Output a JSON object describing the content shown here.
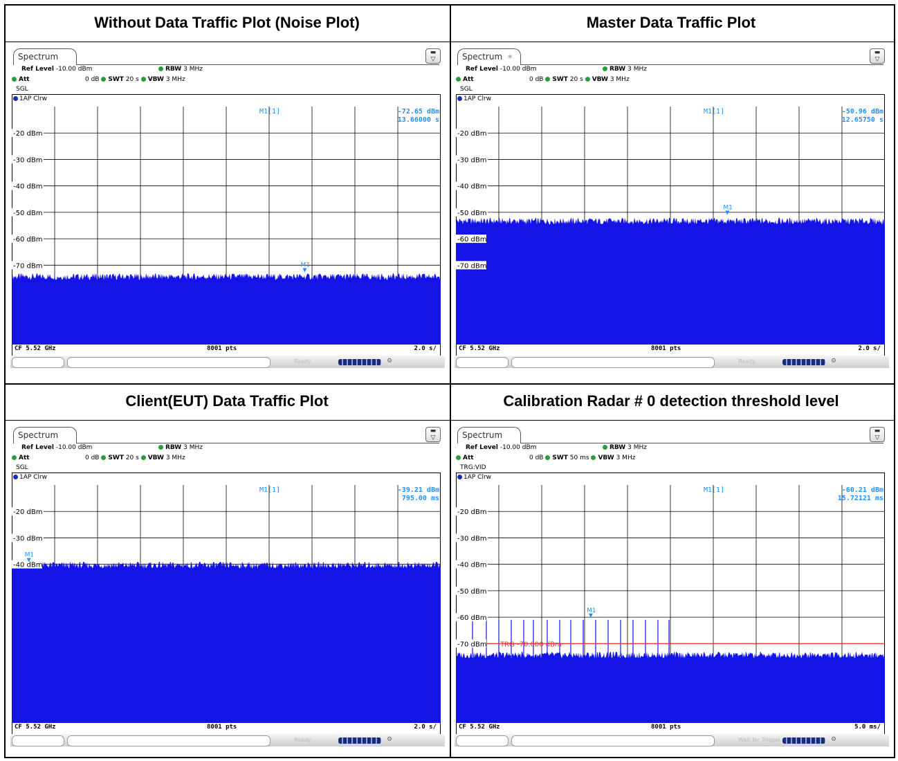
{
  "titles": {
    "tl": "Without Data Traffic Plot (Noise Plot)",
    "tr": "Master Data Traffic Plot",
    "bl": "Client(EUT) Data Traffic Plot",
    "br": "Calibration Radar # 0 detection threshold level"
  },
  "common": {
    "tab_label": "Spectrum",
    "ref_level_label": "Ref Level",
    "ref_level_value": "-10.00 dBm",
    "att_label": "Att",
    "att_value": "0 dB",
    "swt_label": "SWT",
    "rbw_label": "RBW",
    "rbw_value": "3 MHz",
    "vbw_label": "VBW",
    "vbw_value": "3 MHz",
    "trace_label": "1AP Clrw",
    "marker_label": "M1[1]",
    "marker_flag": "M1",
    "cf": "CF 5.52 GHz",
    "pts": "8001 pts",
    "sb_icon": "⚙"
  },
  "panels": {
    "tl": {
      "swt": "20 s",
      "mode": "SGL",
      "marker_level": "-72.65 dBm",
      "marker_time": "13.66000 s",
      "div": "2.0 s/",
      "status": "Ready"
    },
    "tr": {
      "swt": "20 s",
      "mode": "SGL",
      "marker_level": "-50.96 dBm",
      "marker_time": "12.65750 s",
      "div": "2.0 s/",
      "status": "Ready"
    },
    "bl": {
      "swt": "20 s",
      "mode": "SGL",
      "marker_level": "-39.21 dBm",
      "marker_time": "795.00 ms",
      "div": "2.0 s/",
      "status": "Ready"
    },
    "br": {
      "swt": "50 ms",
      "mode": "TRG:VID",
      "marker_level": "-60.21 dBm",
      "marker_time": "15.72121 ms",
      "div": "5.0 ms/",
      "status": "Wait for Trigger",
      "trg_label": "TRG -70.000 dBm"
    }
  },
  "chart_data": [
    {
      "type": "line",
      "title": "Without Data Traffic Plot (Noise Plot)",
      "y_ticks": [
        "-20 dBm",
        "-30 dBm",
        "-40 dBm",
        "-50 dBm",
        "-60 dBm",
        "-70 dBm"
      ],
      "ylim": [
        -100,
        -10
      ],
      "noise_floor_dbm": -75,
      "marker": {
        "x_s": 13.66,
        "y_dbm": -72.65
      },
      "colors": {
        "trace": "#1414e6",
        "marker": "#1e90ff"
      }
    },
    {
      "type": "line",
      "title": "Master Data Traffic Plot",
      "y_ticks": [
        "-20 dBm",
        "-30 dBm",
        "-40 dBm",
        "-50 dBm",
        "-60 dBm",
        "-70 dBm"
      ],
      "ylim": [
        -100,
        -10
      ],
      "noise_floor_dbm": -54,
      "marker": {
        "x_s": 12.6575,
        "y_dbm": -50.96
      },
      "colors": {
        "trace": "#1414e6",
        "marker": "#1e90ff"
      }
    },
    {
      "type": "line",
      "title": "Client(EUT) Data Traffic Plot",
      "y_ticks": [
        "-20 dBm",
        "-30 dBm",
        "-40 dBm"
      ],
      "ylim": [
        -100,
        -10
      ],
      "noise_floor_dbm": -41,
      "marker": {
        "x_s": 0.795,
        "y_dbm": -39.21
      },
      "colors": {
        "trace": "#1414e6",
        "marker": "#1e90ff"
      }
    },
    {
      "type": "line",
      "title": "Calibration Radar # 0 detection threshold level",
      "y_ticks": [
        "-20 dBm",
        "-30 dBm",
        "-40 dBm",
        "-50 dBm",
        "-60 dBm",
        "-70 dBm"
      ],
      "ylim": [
        -100,
        -10
      ],
      "noise_floor_dbm": -75,
      "trigger_dbm": -70,
      "pulse_peak_dbm": -61,
      "marker": {
        "x_ms": 15.72121,
        "y_dbm": -60.21
      },
      "colors": {
        "trace": "#1414e6",
        "marker": "#1e90ff",
        "trigger": "#e53030"
      }
    }
  ]
}
